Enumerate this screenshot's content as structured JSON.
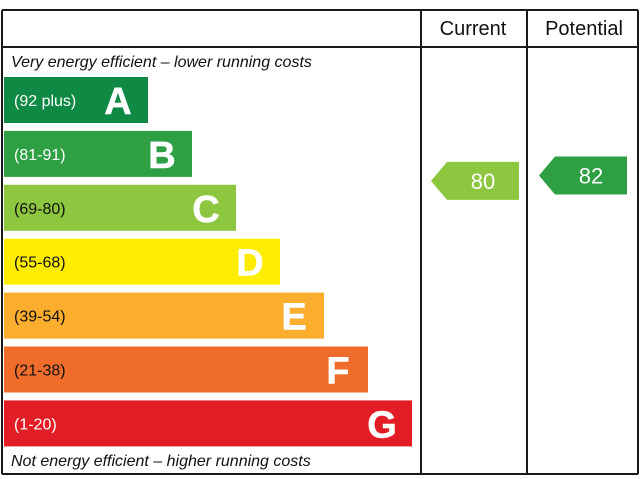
{
  "chart_data": {
    "type": "bar",
    "top_caption": "Very energy efficient – lower running costs",
    "bottom_caption": "Not energy efficient – higher running costs",
    "columns": [
      "Current",
      "Potential"
    ],
    "bands": [
      {
        "letter": "A",
        "range": "(92 plus)",
        "min": 92,
        "max": null,
        "color": "#0f8a44",
        "range_color": "#ffffff"
      },
      {
        "letter": "B",
        "range": "(81-91)",
        "min": 81,
        "max": 91,
        "color": "#2ea043",
        "range_color": "#ffffff"
      },
      {
        "letter": "C",
        "range": "(69-80)",
        "min": 69,
        "max": 80,
        "color": "#8dc63f",
        "range_color": "#111111"
      },
      {
        "letter": "D",
        "range": "(55-68)",
        "min": 55,
        "max": 68,
        "color": "#ffed00",
        "range_color": "#111111"
      },
      {
        "letter": "E",
        "range": "(39-54)",
        "min": 39,
        "max": 54,
        "color": "#fbae2e",
        "range_color": "#111111"
      },
      {
        "letter": "F",
        "range": "(21-38)",
        "min": 21,
        "max": 38,
        "color": "#ef6c2b",
        "range_color": "#111111"
      },
      {
        "letter": "G",
        "range": "(1-20)",
        "min": 1,
        "max": 20,
        "color": "#e31d25",
        "range_color": "#ffffff"
      }
    ],
    "ratings": [
      {
        "column": "Current",
        "value": 80,
        "color": "#8dc63f"
      },
      {
        "column": "Potential",
        "value": 82,
        "color": "#2ea043"
      }
    ]
  }
}
